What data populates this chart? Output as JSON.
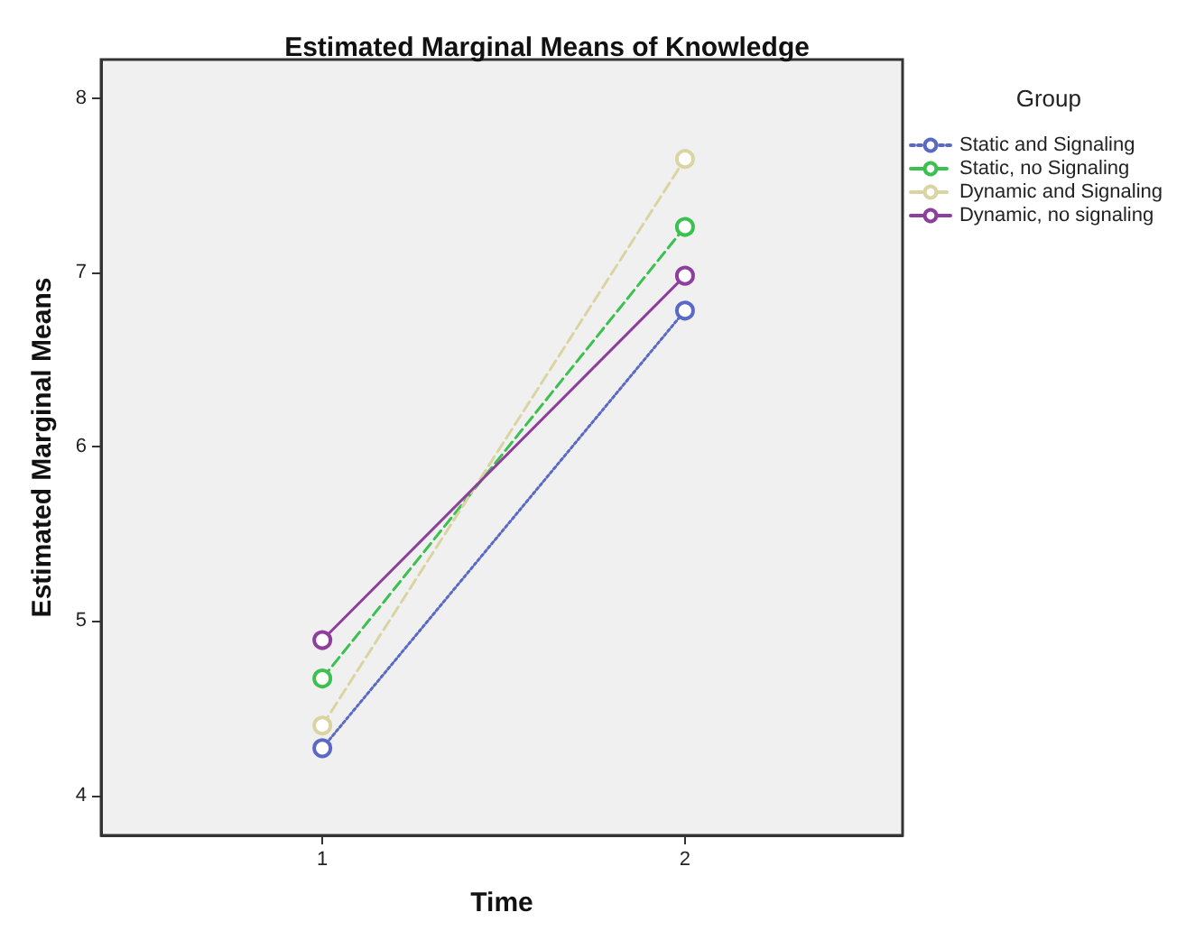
{
  "chart_data": {
    "type": "line",
    "title": "Estimated Marginal Means of Knowledge",
    "xlabel": "Time",
    "ylabel": "Estimated Marginal Means",
    "legend_title": "Group",
    "x": [
      1,
      2
    ],
    "xlim": [
      0.39,
      2.6
    ],
    "xticks": [
      1,
      2
    ],
    "ylim": [
      3.77,
      8.22
    ],
    "yticks": [
      4,
      5,
      6,
      7,
      8
    ],
    "series": [
      {
        "name": "Static and Signaling",
        "color": "#5a6ac4",
        "values": [
          4.27,
          6.78
        ],
        "line_style": "dotted"
      },
      {
        "name": "Static, no Signaling",
        "color": "#3cc050",
        "values": [
          4.67,
          7.26
        ],
        "line_style": "dashed"
      },
      {
        "name": "Dynamic and Signaling",
        "color": "#d9d4a2",
        "values": [
          4.4,
          7.65
        ],
        "line_style": "dashed"
      },
      {
        "name": "Dynamic, no signaling",
        "color": "#8e3e9c",
        "values": [
          4.89,
          6.98
        ],
        "line_style": "solid"
      }
    ],
    "marker": "circle",
    "grid": false,
    "legend": "top right"
  }
}
